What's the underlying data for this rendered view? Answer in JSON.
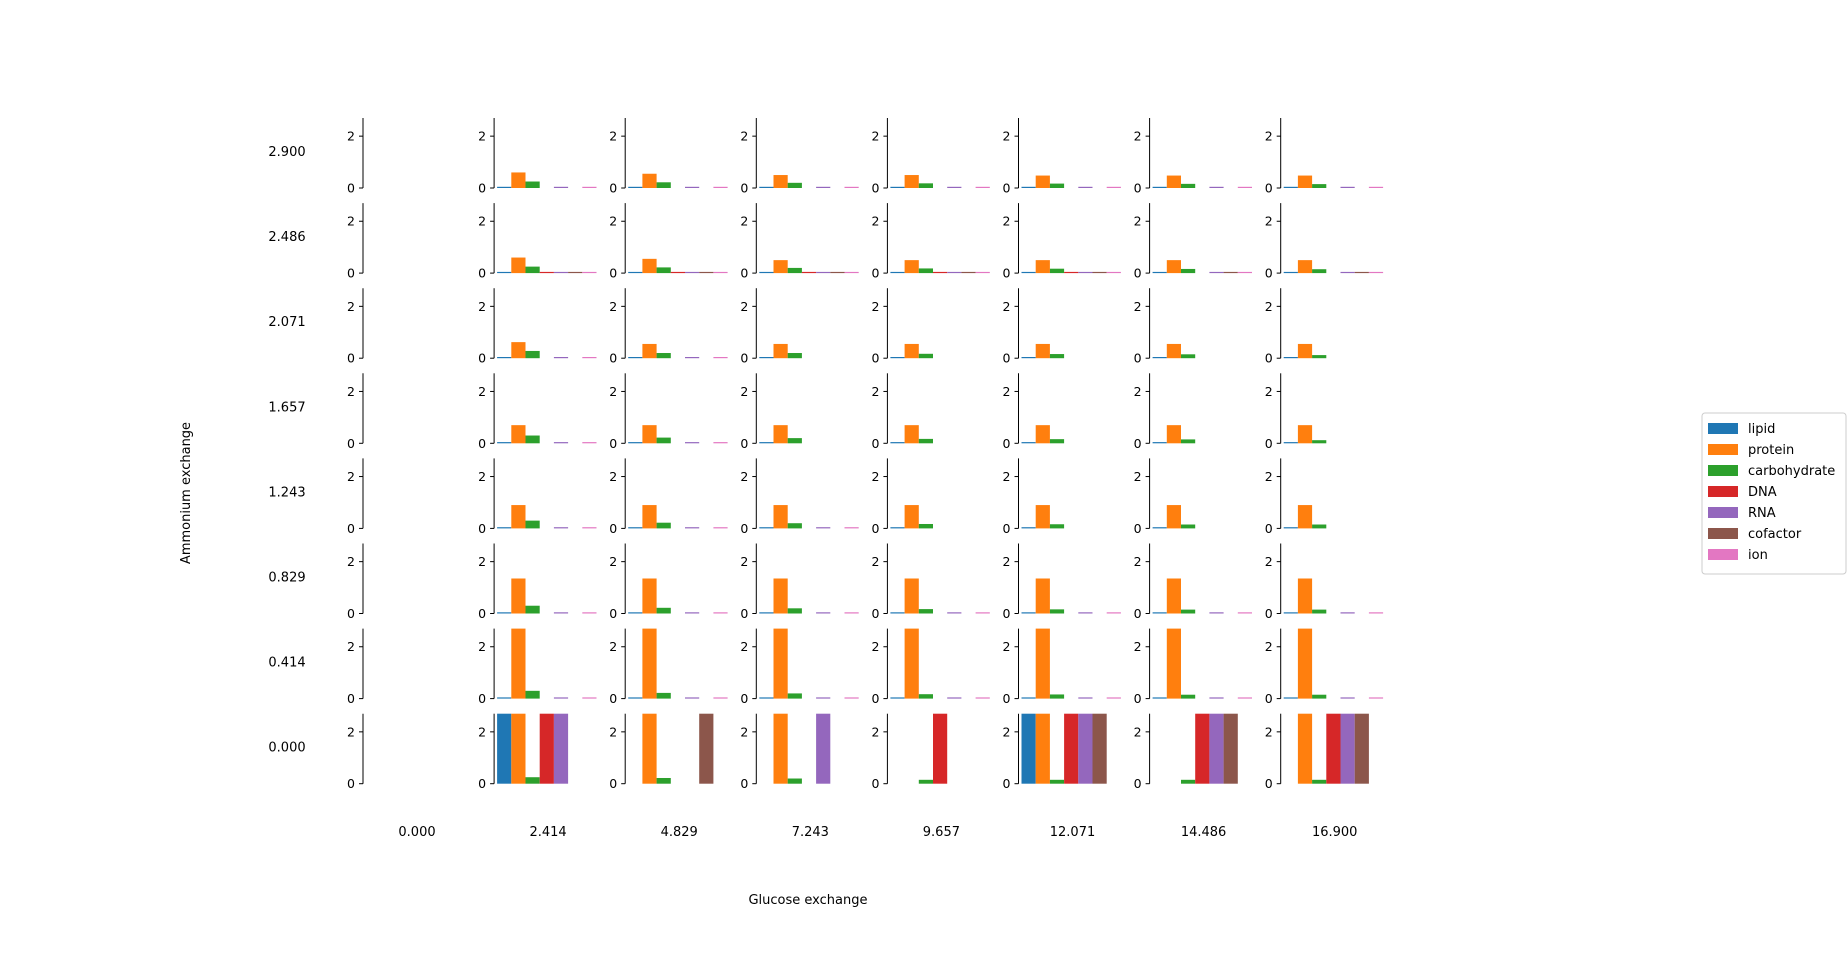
{
  "chart_data": {
    "type": "bar",
    "layout": "grid of small multiples",
    "xlabel": "Glucose exchange",
    "ylabel": "Ammonium exchange",
    "col_labels": [
      "0.000",
      "2.414",
      "4.829",
      "7.243",
      "9.657",
      "12.071",
      "14.486",
      "16.900"
    ],
    "row_labels": [
      "2.900",
      "2.486",
      "2.071",
      "1.657",
      "1.243",
      "0.829",
      "0.414",
      "0.000"
    ],
    "categories": [
      "lipid",
      "protein",
      "carbohydrate",
      "DNA",
      "RNA",
      "cofactor",
      "ion"
    ],
    "colors": [
      "#1f77b4",
      "#ff7f0e",
      "#2ca02c",
      "#d62728",
      "#9467bd",
      "#8c564b",
      "#e377c2"
    ],
    "ylim": [
      0,
      2.7
    ],
    "yticks": [
      "0",
      "2"
    ],
    "legend_position": "right",
    "cells": [
      [
        null,
        [
          0.02,
          0.6,
          0.25,
          0.0,
          0.02,
          0.0,
          0.02
        ],
        [
          0.02,
          0.55,
          0.22,
          0.0,
          0.02,
          0.0,
          0.02
        ],
        [
          0.02,
          0.5,
          0.2,
          0.0,
          0.02,
          0.0,
          0.02
        ],
        [
          0.02,
          0.5,
          0.18,
          0.0,
          0.02,
          0.0,
          0.02
        ],
        [
          0.02,
          0.48,
          0.17,
          0.0,
          0.02,
          0.0,
          0.02
        ],
        [
          0.02,
          0.48,
          0.16,
          0.0,
          0.02,
          0.0,
          0.02
        ],
        [
          0.02,
          0.48,
          0.15,
          0.0,
          0.02,
          0.0,
          0.02
        ]
      ],
      [
        null,
        [
          0.02,
          0.6,
          0.25,
          0.03,
          0.04,
          0.03,
          0.02
        ],
        [
          0.02,
          0.55,
          0.22,
          0.02,
          0.02,
          0.02,
          0.02
        ],
        [
          0.02,
          0.5,
          0.2,
          0.02,
          0.02,
          0.02,
          0.02
        ],
        [
          0.02,
          0.5,
          0.18,
          0.02,
          0.02,
          0.02,
          0.02
        ],
        [
          0.02,
          0.5,
          0.17,
          0.02,
          0.02,
          0.02,
          0.02
        ],
        [
          0.02,
          0.5,
          0.16,
          0.0,
          0.02,
          0.02,
          0.02
        ],
        [
          0.02,
          0.5,
          0.15,
          0.0,
          0.02,
          0.02,
          0.02
        ]
      ],
      [
        null,
        [
          0.02,
          0.62,
          0.28,
          0.0,
          0.02,
          0.0,
          0.02
        ],
        [
          0.02,
          0.55,
          0.2,
          0.0,
          0.02,
          0.0,
          0.02
        ],
        [
          0.02,
          0.55,
          0.2,
          0.0,
          0.0,
          0.0,
          0.0
        ],
        [
          0.02,
          0.55,
          0.17,
          0.0,
          0.0,
          0.0,
          0.0
        ],
        [
          0.02,
          0.55,
          0.16,
          0.0,
          0.0,
          0.0,
          0.0
        ],
        [
          0.02,
          0.55,
          0.15,
          0.0,
          0.0,
          0.0,
          0.0
        ],
        [
          0.02,
          0.55,
          0.12,
          0.0,
          0.0,
          0.0,
          0.0
        ]
      ],
      [
        null,
        [
          0.02,
          0.7,
          0.3,
          0.0,
          0.02,
          0.0,
          0.02
        ],
        [
          0.02,
          0.7,
          0.22,
          0.0,
          0.02,
          0.0,
          0.02
        ],
        [
          0.02,
          0.7,
          0.2,
          0.0,
          0.0,
          0.0,
          0.0
        ],
        [
          0.02,
          0.7,
          0.17,
          0.0,
          0.0,
          0.0,
          0.0
        ],
        [
          0.02,
          0.7,
          0.16,
          0.0,
          0.0,
          0.0,
          0.0
        ],
        [
          0.02,
          0.7,
          0.15,
          0.0,
          0.0,
          0.0,
          0.0
        ],
        [
          0.02,
          0.7,
          0.12,
          0.0,
          0.0,
          0.0,
          0.0
        ]
      ],
      [
        null,
        [
          0.02,
          0.9,
          0.3,
          0.0,
          0.02,
          0.0,
          0.02
        ],
        [
          0.02,
          0.9,
          0.22,
          0.0,
          0.02,
          0.0,
          0.02
        ],
        [
          0.02,
          0.9,
          0.2,
          0.0,
          0.02,
          0.0,
          0.02
        ],
        [
          0.02,
          0.9,
          0.17,
          0.0,
          0.0,
          0.0,
          0.0
        ],
        [
          0.02,
          0.9,
          0.16,
          0.0,
          0.0,
          0.0,
          0.0
        ],
        [
          0.02,
          0.9,
          0.15,
          0.0,
          0.0,
          0.0,
          0.0
        ],
        [
          0.02,
          0.9,
          0.15,
          0.0,
          0.0,
          0.0,
          0.0
        ]
      ],
      [
        null,
        [
          0.02,
          1.35,
          0.3,
          0.0,
          0.03,
          0.0,
          0.02
        ],
        [
          0.02,
          1.35,
          0.22,
          0.0,
          0.03,
          0.0,
          0.02
        ],
        [
          0.02,
          1.35,
          0.2,
          0.0,
          0.03,
          0.0,
          0.02
        ],
        [
          0.02,
          1.35,
          0.17,
          0.0,
          0.03,
          0.0,
          0.02
        ],
        [
          0.02,
          1.35,
          0.16,
          0.0,
          0.03,
          0.0,
          0.02
        ],
        [
          0.02,
          1.35,
          0.15,
          0.0,
          0.03,
          0.0,
          0.02
        ],
        [
          0.02,
          1.35,
          0.15,
          0.0,
          0.03,
          0.0,
          0.02
        ]
      ],
      [
        null,
        [
          0.02,
          2.7,
          0.3,
          0.0,
          0.04,
          0.0,
          0.02
        ],
        [
          0.02,
          2.7,
          0.22,
          0.0,
          0.04,
          0.0,
          0.02
        ],
        [
          0.02,
          2.7,
          0.2,
          0.0,
          0.04,
          0.0,
          0.02
        ],
        [
          0.02,
          2.7,
          0.17,
          0.0,
          0.04,
          0.0,
          0.02
        ],
        [
          0.02,
          2.7,
          0.16,
          0.0,
          0.04,
          0.0,
          0.02
        ],
        [
          0.02,
          2.7,
          0.15,
          0.0,
          0.04,
          0.0,
          0.02
        ],
        [
          0.02,
          2.7,
          0.15,
          0.0,
          0.04,
          0.0,
          0.02
        ]
      ],
      [
        null,
        [
          2.7,
          2.7,
          0.25,
          2.7,
          2.7,
          0.0,
          0.0
        ],
        [
          0.0,
          2.7,
          0.22,
          0.0,
          0.0,
          2.7,
          0.0
        ],
        [
          0.0,
          2.7,
          0.2,
          0.0,
          2.7,
          0.0,
          0.0
        ],
        [
          0.0,
          0.0,
          0.15,
          2.7,
          0.0,
          0.0,
          0.0
        ],
        [
          2.7,
          2.7,
          0.15,
          2.7,
          2.7,
          2.7,
          0.0
        ],
        [
          0.0,
          0.0,
          0.15,
          2.7,
          2.7,
          2.7,
          0.0
        ],
        [
          0.0,
          2.7,
          0.15,
          2.7,
          2.7,
          2.7,
          0.0
        ]
      ]
    ]
  }
}
